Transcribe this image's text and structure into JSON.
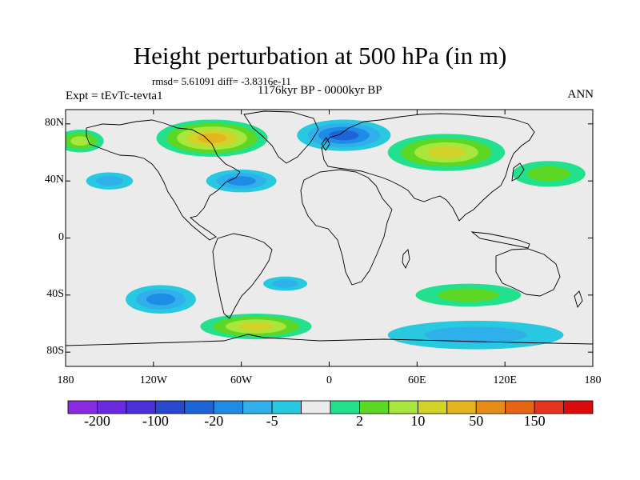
{
  "title": "Height perturbation at 500 hPa (in m)",
  "stats": "rmsd= 5.61091 diff= -3.8316e-11",
  "period": "1176kyr BP - 0000kyr BP",
  "experiment": "Expt = tEvTc-tevta1",
  "season": "ANN",
  "lat_ticks": [
    {
      "label": "80N",
      "lat": 80
    },
    {
      "label": "40N",
      "lat": 40
    },
    {
      "label": "0",
      "lat": 0
    },
    {
      "label": "40S",
      "lat": -40
    },
    {
      "label": "80S",
      "lat": -80
    }
  ],
  "lon_ticks": [
    {
      "label": "180",
      "lon": -180
    },
    {
      "label": "120W",
      "lon": -120
    },
    {
      "label": "60W",
      "lon": -60
    },
    {
      "label": "0",
      "lon": 0
    },
    {
      "label": "60E",
      "lon": 60
    },
    {
      "label": "120E",
      "lon": 120
    },
    {
      "label": "180",
      "lon": 180
    }
  ],
  "colorbar": {
    "colors": [
      "#8a2be2",
      "#6a2be0",
      "#4a30d8",
      "#2848d0",
      "#1e64d8",
      "#1e8ce6",
      "#30b0ea",
      "#28c8e0",
      "#ebebeb",
      "#22e08c",
      "#5cd824",
      "#a8e63c",
      "#d2d228",
      "#e6b41e",
      "#e68c14",
      "#e66414",
      "#e6321e",
      "#dc0a0a"
    ],
    "labels": [
      {
        "text": "-200",
        "boundary": 1
      },
      {
        "text": "-100",
        "boundary": 3
      },
      {
        "text": "-20",
        "boundary": 5
      },
      {
        "text": "-5",
        "boundary": 7
      },
      {
        "text": "2",
        "boundary": 10
      },
      {
        "text": "10",
        "boundary": 12
      },
      {
        "text": "50",
        "boundary": 14
      },
      {
        "text": "150",
        "boundary": 16
      }
    ]
  },
  "anomaly_fields": [
    {
      "name": "north-atlantic-north-america-positive",
      "lon": -80,
      "lat": 70,
      "rx": 38,
      "ry": 13,
      "level": 4
    },
    {
      "name": "scandinavia-negative",
      "lon": 10,
      "lat": 72,
      "rx": 32,
      "ry": 11,
      "level": -3
    },
    {
      "name": "north-pacific-positive",
      "lon": -170,
      "lat": 68,
      "rx": 16,
      "ry": 8,
      "level": 2
    },
    {
      "name": "siberia-positive",
      "lon": 80,
      "lat": 60,
      "rx": 40,
      "ry": 13,
      "level": 3
    },
    {
      "name": "east-asia-positive",
      "lon": 150,
      "lat": 45,
      "rx": 25,
      "ry": 9,
      "level": 1
    },
    {
      "name": "north-atlantic-negative",
      "lon": -60,
      "lat": 40,
      "rx": 24,
      "ry": 8,
      "level": -2
    },
    {
      "name": "east-pacific-negative",
      "lon": -150,
      "lat": 40,
      "rx": 16,
      "ry": 6,
      "level": -1
    },
    {
      "name": "south-pacific-negative",
      "lon": -115,
      "lat": -43,
      "rx": 24,
      "ry": 10,
      "level": -2
    },
    {
      "name": "south-atlantic-negative",
      "lon": -30,
      "lat": -32,
      "rx": 15,
      "ry": 5,
      "level": -1
    },
    {
      "name": "southern-ocean-positive",
      "lon": -50,
      "lat": -62,
      "rx": 38,
      "ry": 9,
      "level": 3
    },
    {
      "name": "indian-ocean-positive",
      "lon": 95,
      "lat": -40,
      "rx": 36,
      "ry": 8,
      "level": 1
    },
    {
      "name": "antarctic-negative",
      "lon": 100,
      "lat": -68,
      "rx": 60,
      "ry": 10,
      "level": -1
    }
  ]
}
